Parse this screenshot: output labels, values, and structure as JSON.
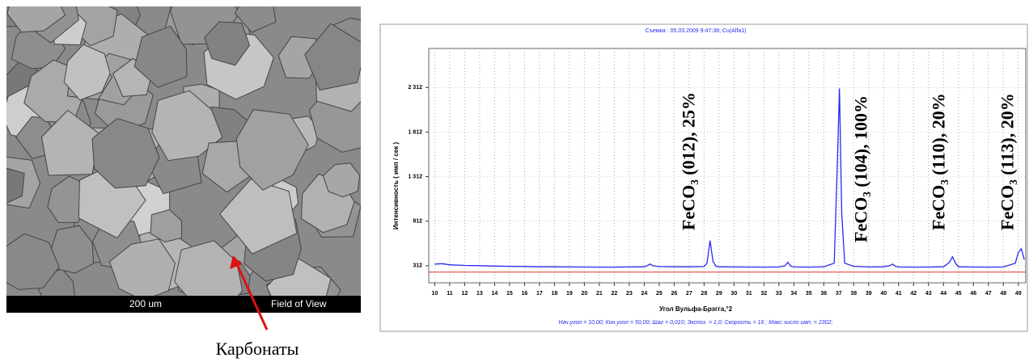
{
  "micrograph": {
    "scale_label": "200 um",
    "field_label": "Field of View",
    "caption": "Карбонаты"
  },
  "chart_data": {
    "type": "line",
    "title": "Съемка : 05.03.2009 9:47:38;  Cu(Alfa1)",
    "x_label": "Угол Вульфа-Брэгга,°2",
    "y_label": "Интенсивность ( имп / сек )",
    "footer": "Нач.угол = 10,00;  Кон.угол = 50,00;  Шаг = 0,010;  Экспоз. = 1,0;  Скорость = 16 ;  Макс.число имп. = 2302;",
    "xlim": [
      9.6,
      49.5
    ],
    "ylim": [
      120,
      2750
    ],
    "xticks": [
      10,
      11,
      12,
      13,
      14,
      15,
      16,
      17,
      18,
      19,
      20,
      21,
      22,
      23,
      24,
      25,
      26,
      27,
      28,
      29,
      30,
      31,
      32,
      33,
      34,
      35,
      36,
      37,
      38,
      39,
      40,
      41,
      42,
      43,
      44,
      45,
      46,
      47,
      48,
      49
    ],
    "yticks": [
      312,
      {
        "value": 812,
        "label": "812"
      },
      {
        "value": 1312,
        "label": "1 312"
      },
      {
        "value": 1812,
        "label": "1 812"
      },
      {
        "value": 2312,
        "label": "2 312"
      }
    ],
    "grid": true,
    "baseline": {
      "value": 240,
      "color": "#e03030"
    },
    "x": [
      10,
      10.5,
      11,
      12,
      13,
      14,
      15,
      16,
      17,
      18,
      19,
      20,
      21,
      22,
      23,
      24,
      24.2,
      24.4,
      24.6,
      25,
      26,
      27,
      28,
      28.2,
      28.4,
      28.6,
      28.8,
      29,
      30,
      31,
      32,
      33,
      33.4,
      33.6,
      33.8,
      34,
      35,
      36,
      36.7,
      36.9,
      37.05,
      37.2,
      37.4,
      38,
      39,
      40,
      40.4,
      40.6,
      40.8,
      41,
      42,
      43,
      44,
      44.4,
      44.6,
      44.8,
      45,
      46,
      47,
      48,
      48.8,
      49,
      49.2,
      49.4
    ],
    "series": [
      {
        "color": "#2a2af0",
        "values": [
          330,
          335,
          322,
          315,
          312,
          308,
          305,
          303,
          300,
          300,
          298,
          297,
          296,
          296,
          298,
          300,
          312,
          330,
          310,
          302,
          300,
          300,
          302,
          340,
          594,
          360,
          305,
          300,
          298,
          297,
          296,
          298,
          310,
          350,
          305,
          298,
          296,
          300,
          340,
          1400,
          2302,
          900,
          340,
          305,
          298,
          300,
          312,
          330,
          305,
          298,
          296,
          297,
          300,
          350,
          412,
          340,
          300,
          297,
          296,
          298,
          340,
          460,
          503,
          380
        ]
      }
    ],
    "annotations": [
      {
        "x": 27.1,
        "text": "FeCO₃ (012), 25%"
      },
      {
        "x": 38.6,
        "text": "FeCO₃ (104), 100%"
      },
      {
        "x": 43.8,
        "text": "FeCO₃ (110), 20%"
      },
      {
        "x": 48.4,
        "text": "FeCO₃ (113), 20%"
      }
    ]
  }
}
